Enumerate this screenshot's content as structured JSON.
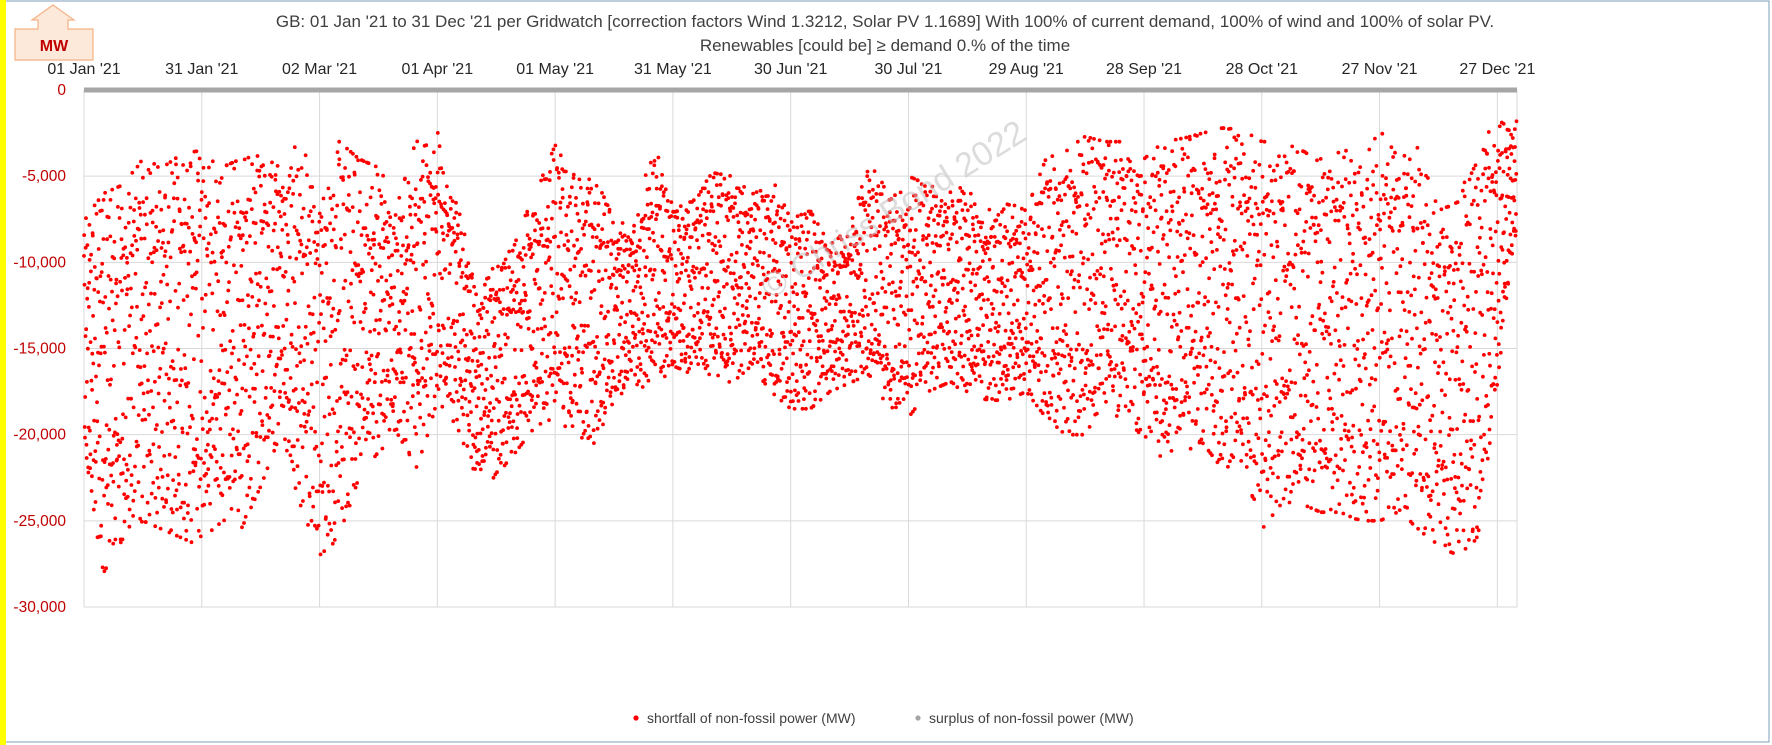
{
  "unit_badge": "MW",
  "watermark": "© Chriss Bond  2022",
  "colors": {
    "shortfall": "#ff0000",
    "surplus": "#a6a6a6",
    "axis_tick_labels": "#c00000",
    "left_bar": "#ffff00",
    "zero_line": "#a6a6a6",
    "badge_fill": "#fde9d9"
  },
  "chart_data": {
    "type": "scatter",
    "title": "GB: 01 Jan '21 to 31 Dec '21 per Gridwatch [correction factors Wind 1.3212, Solar PV 1.1689]   With 100% of current demand, 100% of wind and 100% of solar PV.",
    "subtitle": "Renewables [could be] ≥ demand 0.% of the time",
    "ylabel": "MW",
    "xlim": [
      "2021-01-01",
      "2021-12-31"
    ],
    "ylim": [
      -30000,
      0
    ],
    "x_ticks": [
      "01 Jan '21",
      "31 Jan '21",
      "02 Mar '21",
      "01 Apr '21",
      "01 May '21",
      "31 May '21",
      "30 Jun '21",
      "30 Jul '21",
      "29 Aug '21",
      "28 Sep '21",
      "28 Oct '21",
      "27 Nov '21",
      "27 Dec '21"
    ],
    "y_ticks": [
      "0",
      "-5,000",
      "-10,000",
      "-15,000",
      "-20,000",
      "-25,000",
      "-30,000"
    ],
    "x_axis_position": "top",
    "grid": true,
    "legend": {
      "position": "bottom",
      "entries": [
        "shortfall of non-fossil power (MW)",
        "surplus of non-fossil power (MW)"
      ]
    },
    "series": [
      {
        "name": "shortfall of non-fossil power (MW)",
        "note_x_format": "date (approximate daily envelope; each date spans many half-hourly points between low and high)",
        "x": [
          "2021-01-01",
          "2021-01-06",
          "2021-01-11",
          "2021-01-16",
          "2021-01-21",
          "2021-01-26",
          "2021-01-31",
          "2021-02-05",
          "2021-02-10",
          "2021-02-15",
          "2021-02-20",
          "2021-02-25",
          "2021-03-02",
          "2021-03-07",
          "2021-03-12",
          "2021-03-17",
          "2021-03-22",
          "2021-03-27",
          "2021-04-01",
          "2021-04-06",
          "2021-04-11",
          "2021-04-16",
          "2021-04-21",
          "2021-04-26",
          "2021-05-01",
          "2021-05-06",
          "2021-05-11",
          "2021-05-16",
          "2021-05-21",
          "2021-05-26",
          "2021-05-31",
          "2021-06-05",
          "2021-06-10",
          "2021-06-15",
          "2021-06-20",
          "2021-06-25",
          "2021-06-30",
          "2021-07-05",
          "2021-07-10",
          "2021-07-15",
          "2021-07-20",
          "2021-07-25",
          "2021-07-30",
          "2021-08-04",
          "2021-08-09",
          "2021-08-14",
          "2021-08-19",
          "2021-08-24",
          "2021-08-29",
          "2021-09-03",
          "2021-09-08",
          "2021-09-13",
          "2021-09-18",
          "2021-09-23",
          "2021-09-28",
          "2021-10-03",
          "2021-10-08",
          "2021-10-13",
          "2021-10-18",
          "2021-10-23",
          "2021-10-28",
          "2021-11-02",
          "2021-11-07",
          "2021-11-12",
          "2021-11-17",
          "2021-11-22",
          "2021-11-27",
          "2021-12-02",
          "2021-12-07",
          "2021-12-12",
          "2021-12-17",
          "2021-12-22",
          "2021-12-27",
          "2021-12-31"
        ],
        "low": [
          -22000,
          -28000,
          -26000,
          -25000,
          -25500,
          -26000,
          -26500,
          -25000,
          -25500,
          -23000,
          -20000,
          -24000,
          -27000,
          -26000,
          -22500,
          -21000,
          -20000,
          -22000,
          -18000,
          -19500,
          -22500,
          -22500,
          -21000,
          -19500,
          -19000,
          -20000,
          -20500,
          -18000,
          -17000,
          -17500,
          -16000,
          -16500,
          -16500,
          -17000,
          -16000,
          -17500,
          -18500,
          -18500,
          -17500,
          -17000,
          -16500,
          -18500,
          -19000,
          -17500,
          -17000,
          -17500,
          -18000,
          -18000,
          -17500,
          -19000,
          -20000,
          -20000,
          -18000,
          -19500,
          -20000,
          -21500,
          -21000,
          -20500,
          -22000,
          -21500,
          -25500,
          -24000,
          -24000,
          -24500,
          -24500,
          -25000,
          -25000,
          -24500,
          -25500,
          -26500,
          -27000,
          -26000,
          -17000,
          -9000
        ],
        "high": [
          -7500,
          -6000,
          -5500,
          -4000,
          -4500,
          -3700,
          -3500,
          -4500,
          -4000,
          -3800,
          -4500,
          -2900,
          -6000,
          -3000,
          -4000,
          -4500,
          -6500,
          -2600,
          -2400,
          -6000,
          -12000,
          -10000,
          -8500,
          -6000,
          -3200,
          -5000,
          -5000,
          -7500,
          -8000,
          -3000,
          -6500,
          -6500,
          -4800,
          -5000,
          -6000,
          -5000,
          -7500,
          -7000,
          -9000,
          -8000,
          -4200,
          -6000,
          -5000,
          -5500,
          -6000,
          -5500,
          -7000,
          -6500,
          -7000,
          -4000,
          -3500,
          -2700,
          -3000,
          -3000,
          -4000,
          -3000,
          -2800,
          -2500,
          -2200,
          -2300,
          -3000,
          -3000,
          -3500,
          -4000,
          -2600,
          -4500,
          -2300,
          -4000,
          -3300,
          -7000,
          -6500,
          -3000,
          -2000,
          -1600
        ]
      },
      {
        "name": "surplus of non-fossil power (MW)",
        "x": [],
        "values": []
      }
    ]
  }
}
